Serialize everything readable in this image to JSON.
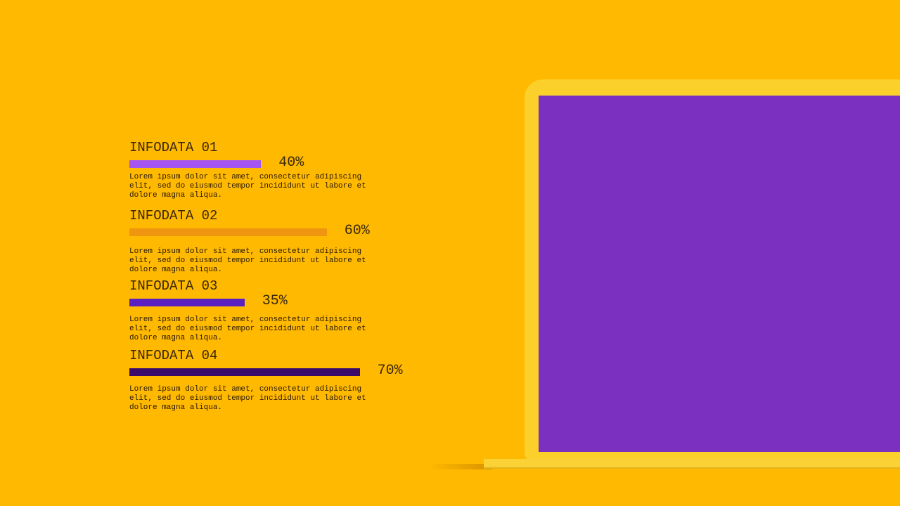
{
  "items": [
    {
      "title": "INFODATA 01",
      "value": 40,
      "value_label": "40%",
      "color": "#a455f2",
      "text": "Lorem ipsum dolor sit amet, consectetur adipiscing elit, sed do eiusmod tempor incididunt ut labore et dolore magna aliqua."
    },
    {
      "title": "INFODATA 02",
      "value": 60,
      "value_label": "60%",
      "color": "#f0950f",
      "text": "Lorem ipsum dolor sit amet, consectetur adipiscing elit, sed do eiusmod tempor incididunt ut labore et dolore magna aliqua."
    },
    {
      "title": "INFODATA 03",
      "value": 35,
      "value_label": "35%",
      "color": "#5b20c2",
      "text": "Lorem ipsum dolor sit amet, consectetur adipiscing elit, sed do eiusmod tempor incididunt ut labore et dolore magna aliqua."
    },
    {
      "title": "INFODATA 04",
      "value": 70,
      "value_label": "70%",
      "color": "#3b0b6c",
      "text": "Lorem ipsum dolor sit amet, consectetur adipiscing elit, sed do eiusmod tempor incididunt ut labore et dolore magna aliqua."
    }
  ]
}
